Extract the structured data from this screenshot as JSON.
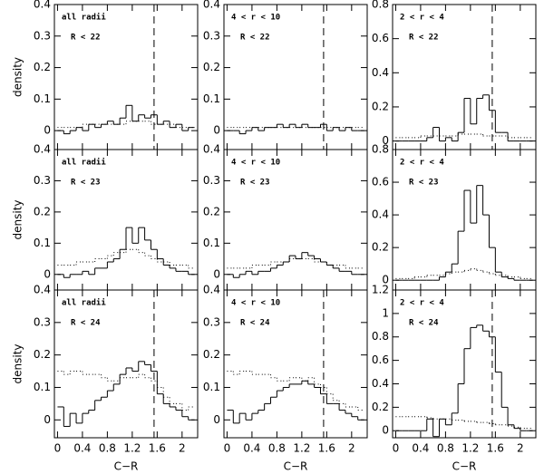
{
  "chart_data": [
    {
      "type": "histogram",
      "bins": [
        0,
        0.1,
        0.2,
        0.3,
        0.4,
        0.5,
        0.6,
        0.7,
        0.8,
        0.9,
        1,
        1.1,
        1.2,
        1.3,
        1.4,
        1.5,
        1.6,
        1.7,
        1.8,
        1.9,
        2,
        2.1,
        2.2
      ],
      "xlim": [
        -0.05,
        2.25
      ],
      "ylim": [
        -0.06,
        0.4
      ],
      "xticks": [
        0,
        0.4,
        0.8,
        1.2,
        1.6,
        2
      ],
      "yticks": [
        0,
        0.1,
        0.2,
        0.3,
        0.4
      ],
      "ylabel": "density",
      "annotation": [
        "all radii",
        "R < 22"
      ],
      "vline": 1.55,
      "series": [
        {
          "style": "solid",
          "color": "#000",
          "values": [
            0,
            -0.01,
            0,
            0.01,
            0,
            0.02,
            0.01,
            0.02,
            0.03,
            0.02,
            0.04,
            0.08,
            0.03,
            0.05,
            0.04,
            0.05,
            0.02,
            0.03,
            0.01,
            0.02,
            0,
            0.01
          ]
        },
        {
          "style": "dotted",
          "color": "#000",
          "values": [
            0.01,
            0.01,
            0.01,
            0.01,
            0.02,
            0.02,
            0.02,
            0.02,
            0.02,
            0.02,
            0.02,
            0.03,
            0.03,
            0.03,
            0.03,
            0.02,
            0.02,
            0.02,
            0.02,
            0.01,
            0.01,
            0.01
          ]
        }
      ]
    },
    {
      "type": "histogram",
      "bins": [
        0,
        0.1,
        0.2,
        0.3,
        0.4,
        0.5,
        0.6,
        0.7,
        0.8,
        0.9,
        1,
        1.1,
        1.2,
        1.3,
        1.4,
        1.5,
        1.6,
        1.7,
        1.8,
        1.9,
        2,
        2.1,
        2.2
      ],
      "xlim": [
        -0.05,
        2.25
      ],
      "ylim": [
        -0.06,
        0.4
      ],
      "xticks": [
        0,
        0.4,
        0.8,
        1.2,
        1.6,
        2
      ],
      "yticks": [
        0,
        0.1,
        0.2,
        0.3,
        0.4
      ],
      "annotation": [
        "4 < r < 10",
        "R < 22"
      ],
      "vline": 1.55,
      "series": [
        {
          "style": "solid",
          "color": "#000",
          "values": [
            0,
            0,
            -0.01,
            0,
            0.01,
            0,
            0.01,
            0.01,
            0.02,
            0.01,
            0.02,
            0.01,
            0.02,
            0.01,
            0.01,
            0.02,
            0,
            0.01,
            0,
            0.01,
            0,
            0
          ]
        },
        {
          "style": "dotted",
          "color": "#000",
          "values": [
            0.01,
            0.01,
            0.01,
            0.01,
            0.01,
            0.01,
            0.01,
            0.01,
            0.01,
            0.01,
            0.01,
            0.01,
            0.01,
            0.01,
            0.01,
            0.01,
            0.01,
            0.01,
            0.01,
            0.01,
            0.01,
            0.01
          ]
        }
      ]
    },
    {
      "type": "histogram",
      "bins": [
        0,
        0.1,
        0.2,
        0.3,
        0.4,
        0.5,
        0.6,
        0.7,
        0.8,
        0.9,
        1,
        1.1,
        1.2,
        1.3,
        1.4,
        1.5,
        1.6,
        1.7,
        1.8,
        1.9,
        2,
        2.1,
        2.2
      ],
      "xlim": [
        -0.05,
        2.25
      ],
      "ylim": [
        -0.05,
        0.8
      ],
      "xticks": [
        0,
        0.4,
        0.8,
        1.2,
        1.6,
        2
      ],
      "yticks": [
        0,
        0.2,
        0.4,
        0.6,
        0.8
      ],
      "annotation": [
        "2 < r < 4",
        "R < 22"
      ],
      "vline": 1.55,
      "series": [
        {
          "style": "solid",
          "color": "#000",
          "values": [
            0,
            0,
            0,
            0,
            0,
            0.02,
            0.08,
            0,
            0.02,
            0,
            0.05,
            0.25,
            0.1,
            0.25,
            0.27,
            0.18,
            0.05,
            0.05,
            0,
            0,
            0,
            0
          ]
        },
        {
          "style": "dotted",
          "color": "#000",
          "values": [
            0.02,
            0.02,
            0.02,
            0.02,
            0.03,
            0.03,
            0.03,
            0.03,
            0.03,
            0.03,
            0.04,
            0.04,
            0.04,
            0.04,
            0.03,
            0.03,
            0.03,
            0.03,
            0.02,
            0.02,
            0.02,
            0.02
          ]
        }
      ]
    },
    {
      "type": "histogram",
      "bins": [
        0,
        0.1,
        0.2,
        0.3,
        0.4,
        0.5,
        0.6,
        0.7,
        0.8,
        0.9,
        1,
        1.1,
        1.2,
        1.3,
        1.4,
        1.5,
        1.6,
        1.7,
        1.8,
        1.9,
        2,
        2.1,
        2.2
      ],
      "xlim": [
        -0.05,
        2.25
      ],
      "ylim": [
        -0.05,
        0.4
      ],
      "xticks": [
        0,
        0.4,
        0.8,
        1.2,
        1.6,
        2
      ],
      "yticks": [
        0,
        0.1,
        0.2,
        0.3,
        0.4
      ],
      "ylabel": "density",
      "annotation": [
        "all radii",
        "R < 23"
      ],
      "series": [
        {
          "style": "solid",
          "color": "#000",
          "values": [
            0,
            -0.01,
            0,
            0,
            0.01,
            0,
            0.02,
            0.02,
            0.04,
            0.05,
            0.08,
            0.15,
            0.1,
            0.15,
            0.11,
            0.08,
            0.05,
            0.03,
            0.02,
            0.01,
            0.01,
            0
          ]
        },
        {
          "style": "dotted",
          "color": "#000",
          "values": [
            0.03,
            0.03,
            0.03,
            0.04,
            0.04,
            0.04,
            0.05,
            0.05,
            0.06,
            0.07,
            0.07,
            0.08,
            0.08,
            0.07,
            0.06,
            0.05,
            0.04,
            0.04,
            0.03,
            0.03,
            0.03,
            0.02
          ]
        }
      ]
    },
    {
      "type": "histogram",
      "bins": [
        0,
        0.1,
        0.2,
        0.3,
        0.4,
        0.5,
        0.6,
        0.7,
        0.8,
        0.9,
        1,
        1.1,
        1.2,
        1.3,
        1.4,
        1.5,
        1.6,
        1.7,
        1.8,
        1.9,
        2,
        2.1,
        2.2
      ],
      "xlim": [
        -0.05,
        2.25
      ],
      "ylim": [
        -0.05,
        0.4
      ],
      "xticks": [
        0,
        0.4,
        0.8,
        1.2,
        1.6,
        2
      ],
      "yticks": [
        0,
        0.1,
        0.2,
        0.3,
        0.4
      ],
      "annotation": [
        "4 < r < 10",
        "R < 23"
      ],
      "series": [
        {
          "style": "solid",
          "color": "#000",
          "values": [
            0,
            -0.01,
            0,
            0.01,
            0,
            0.01,
            0.01,
            0.02,
            0.03,
            0.04,
            0.06,
            0.05,
            0.07,
            0.06,
            0.05,
            0.04,
            0.03,
            0.02,
            0.01,
            0.01,
            0,
            0
          ]
        },
        {
          "style": "dotted",
          "color": "#000",
          "values": [
            0.02,
            0.02,
            0.02,
            0.02,
            0.03,
            0.03,
            0.03,
            0.04,
            0.04,
            0.04,
            0.05,
            0.05,
            0.05,
            0.05,
            0.04,
            0.04,
            0.03,
            0.03,
            0.03,
            0.02,
            0.02,
            0.02
          ]
        }
      ]
    },
    {
      "type": "histogram",
      "bins": [
        0,
        0.1,
        0.2,
        0.3,
        0.4,
        0.5,
        0.6,
        0.7,
        0.8,
        0.9,
        1,
        1.1,
        1.2,
        1.3,
        1.4,
        1.5,
        1.6,
        1.7,
        1.8,
        1.9,
        2,
        2.1,
        2.2
      ],
      "xlim": [
        -0.05,
        2.25
      ],
      "ylim": [
        -0.06,
        0.8
      ],
      "xticks": [
        0,
        0.4,
        0.8,
        1.2,
        1.6,
        2
      ],
      "yticks": [
        0,
        0.2,
        0.4,
        0.6,
        0.8
      ],
      "annotation": [
        "2 < r < 4",
        "R < 23"
      ],
      "series": [
        {
          "style": "solid",
          "color": "#000",
          "values": [
            0,
            0,
            0,
            0,
            0,
            0,
            0,
            0.02,
            0.05,
            0.1,
            0.3,
            0.55,
            0.35,
            0.58,
            0.4,
            0.2,
            0.05,
            0.02,
            0.01,
            0,
            0,
            0
          ]
        },
        {
          "style": "dotted",
          "color": "#000",
          "values": [
            0.01,
            0.01,
            0.01,
            0.02,
            0.02,
            0.03,
            0.03,
            0.03,
            0.04,
            0.05,
            0.05,
            0.06,
            0.07,
            0.06,
            0.05,
            0.04,
            0.03,
            0.03,
            0.02,
            0.02,
            0.01,
            0.01
          ]
        }
      ]
    },
    {
      "type": "histogram",
      "bins": [
        0,
        0.1,
        0.2,
        0.3,
        0.4,
        0.5,
        0.6,
        0.7,
        0.8,
        0.9,
        1,
        1.1,
        1.2,
        1.3,
        1.4,
        1.5,
        1.6,
        1.7,
        1.8,
        1.9,
        2,
        2.1,
        2.2
      ],
      "xlim": [
        -0.05,
        2.25
      ],
      "ylim": [
        -0.055,
        0.4
      ],
      "xticks": [
        0,
        0.4,
        0.8,
        1.2,
        1.6,
        2
      ],
      "yticks": [
        0,
        0.1,
        0.2,
        0.3,
        0.4
      ],
      "ylabel": "density",
      "xlabel": "C−R",
      "annotation": [
        "all radii",
        "R < 24"
      ],
      "vline": 1.55,
      "series": [
        {
          "style": "solid",
          "color": "#000",
          "values": [
            0.04,
            -0.02,
            0.02,
            -0.01,
            0.02,
            0.03,
            0.06,
            0.07,
            0.09,
            0.11,
            0.14,
            0.16,
            0.15,
            0.18,
            0.17,
            0.15,
            0.08,
            0.05,
            0.04,
            0.03,
            0.01,
            0
          ]
        },
        {
          "style": "dotted",
          "color": "#000",
          "values": [
            0.15,
            0.14,
            0.15,
            0.15,
            0.14,
            0.14,
            0.14,
            0.13,
            0.12,
            0.12,
            0.13,
            0.13,
            0.13,
            0.14,
            0.13,
            0.12,
            0.1,
            0.07,
            0.05,
            0.05,
            0.03,
            0.04
          ]
        }
      ]
    },
    {
      "type": "histogram",
      "bins": [
        0,
        0.1,
        0.2,
        0.3,
        0.4,
        0.5,
        0.6,
        0.7,
        0.8,
        0.9,
        1,
        1.1,
        1.2,
        1.3,
        1.4,
        1.5,
        1.6,
        1.7,
        1.8,
        1.9,
        2,
        2.1,
        2.2
      ],
      "xlim": [
        -0.05,
        2.25
      ],
      "ylim": [
        -0.055,
        0.4
      ],
      "xticks": [
        0,
        0.4,
        0.8,
        1.2,
        1.6,
        2
      ],
      "yticks": [
        0,
        0.1,
        0.2,
        0.3,
        0.4
      ],
      "xlabel": "C−R",
      "annotation": [
        "4 < r < 10",
        "R < 24"
      ],
      "vline": 1.55,
      "series": [
        {
          "style": "solid",
          "color": "#000",
          "values": [
            0.03,
            -0.01,
            0.02,
            0,
            0.02,
            0.03,
            0.05,
            0.07,
            0.09,
            0.1,
            0.11,
            0.11,
            0.12,
            0.11,
            0.1,
            0.08,
            0.05,
            0.05,
            0.03,
            0.02,
            0.01,
            0
          ]
        },
        {
          "style": "dotted",
          "color": "#000",
          "values": [
            0.15,
            0.14,
            0.15,
            0.15,
            0.14,
            0.14,
            0.14,
            0.13,
            0.12,
            0.12,
            0.13,
            0.13,
            0.12,
            0.13,
            0.11,
            0.1,
            0.08,
            0.06,
            0.05,
            0.04,
            0.04,
            0.03
          ]
        }
      ]
    },
    {
      "type": "histogram",
      "bins": [
        0,
        0.1,
        0.2,
        0.3,
        0.4,
        0.5,
        0.6,
        0.7,
        0.8,
        0.9,
        1,
        1.1,
        1.2,
        1.3,
        1.4,
        1.5,
        1.6,
        1.7,
        1.8,
        1.9,
        2,
        2.1,
        2.2
      ],
      "xlim": [
        -0.05,
        2.25
      ],
      "ylim": [
        -0.06,
        1.2
      ],
      "xticks": [
        0,
        0.4,
        0.8,
        1.2,
        1.6,
        2
      ],
      "yticks": [
        0,
        0.2,
        0.4,
        0.6,
        0.8,
        1,
        1.2
      ],
      "xlabel": "C−R",
      "annotation": [
        "2 < r < 4",
        "R < 24"
      ],
      "vline": 1.55,
      "series": [
        {
          "style": "solid",
          "color": "#000",
          "values": [
            0,
            0,
            0,
            0,
            0,
            0.1,
            -0.05,
            0.1,
            0.05,
            0.15,
            0.4,
            0.7,
            0.88,
            0.9,
            0.85,
            0.8,
            0.5,
            0.2,
            0.05,
            0.02,
            0,
            0
          ]
        },
        {
          "style": "dotted",
          "color": "#000",
          "values": [
            0.12,
            0.12,
            0.12,
            0.12,
            0.12,
            0.11,
            0.1,
            0.1,
            0.1,
            0.09,
            0.09,
            0.08,
            0.08,
            0.07,
            0.07,
            0.06,
            0.05,
            0.05,
            0.04,
            0.03,
            0.02,
            0.02
          ]
        }
      ]
    }
  ]
}
